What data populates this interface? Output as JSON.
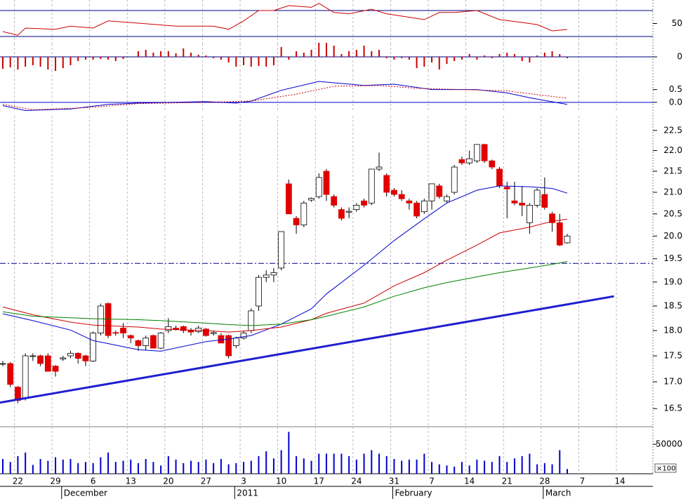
{
  "chart_data": [
    {
      "type": "line",
      "xlim": [
        -0.373,
        86.38
      ],
      "ylim": [
        19.2,
        86.2
      ],
      "yticks": [
        50
      ],
      "levels": [
        30,
        70
      ],
      "level_color": "#000080",
      "xgrid": true,
      "series": [
        {
          "color": "#cc0000",
          "x": [
            0,
            2,
            3,
            7,
            9,
            12,
            14,
            18,
            23,
            28,
            30,
            32,
            34,
            36,
            38,
            41,
            42,
            44,
            46,
            49,
            51,
            56,
            58,
            60,
            63,
            66,
            69,
            71,
            73,
            75
          ],
          "values": [
            37.6,
            32,
            43,
            41,
            46,
            43,
            54,
            50.5,
            46,
            46,
            41,
            54,
            70,
            70,
            77.6,
            75,
            81,
            67,
            65,
            72,
            65,
            56,
            67,
            67,
            70,
            56,
            51.6,
            48.4,
            38.6,
            40.8
          ]
        }
      ]
    },
    {
      "type": "bar",
      "xlim": [
        -0.373,
        86.38
      ],
      "ylim": [
        -19,
        19
      ],
      "yticks": [
        0
      ],
      "hline": {
        "value": 0,
        "color": "#000080"
      },
      "color": "#cc0000",
      "xgrid": true,
      "x": [
        0,
        1,
        2,
        3,
        4,
        5,
        6,
        7,
        8,
        9,
        10,
        11,
        12,
        13,
        14,
        15,
        16,
        17,
        18,
        19,
        20,
        21,
        22,
        23,
        24,
        25,
        26,
        27,
        28,
        29,
        30,
        31,
        32,
        33,
        34,
        35,
        36,
        37,
        38,
        39,
        40,
        41,
        42,
        43,
        44,
        45,
        46,
        47,
        48,
        49,
        50,
        51,
        52,
        53,
        54,
        55,
        56,
        57,
        58,
        59,
        60,
        61,
        62,
        63,
        64,
        65,
        66,
        67,
        68,
        69,
        70,
        71,
        72,
        73,
        74,
        75
      ],
      "values": [
        -17,
        -15,
        -18,
        -14,
        -12,
        -14,
        -18,
        -20,
        -16,
        -12,
        -6,
        -4,
        -4,
        -3,
        -4,
        -6,
        -3,
        0,
        8,
        10,
        6,
        8,
        8,
        5,
        12,
        6,
        3,
        2,
        -2,
        -4,
        -8,
        -14,
        -12,
        -14,
        -13,
        -14,
        -12,
        14,
        -4,
        8,
        6,
        10,
        20,
        20,
        16,
        4,
        8,
        10,
        16,
        8,
        10,
        -2,
        -4,
        -2,
        -4,
        -16,
        -14,
        -8,
        -18,
        -10,
        -6,
        -4,
        4,
        -4,
        2,
        -2,
        4,
        6,
        4,
        -6,
        -8,
        2,
        6,
        8,
        4,
        -2
      ]
    },
    {
      "type": "line",
      "xlim": [
        -0.373,
        86.38
      ],
      "ylim": [
        -0.39,
        1.26
      ],
      "yticks": [
        {
          "value": 0,
          "label": "0.0"
        },
        0.5
      ],
      "hline": {
        "value": 0,
        "color": "#0000cc"
      },
      "xgrid": true,
      "series": [
        {
          "color": "#0000cc",
          "style": "solid",
          "x": [
            0,
            3,
            9,
            14,
            18,
            27,
            31,
            33,
            37,
            42,
            48,
            52,
            57,
            63,
            67,
            70,
            75
          ],
          "values": [
            -0.13,
            -0.32,
            -0.26,
            -0.08,
            -0.03,
            0.03,
            -0.03,
            0.05,
            0.47,
            0.82,
            0.66,
            0.71,
            0.5,
            0.5,
            0.37,
            0.18,
            -0.08
          ]
        },
        {
          "color": "#cc0000",
          "style": "dotted",
          "x": [
            0,
            4,
            11,
            18,
            27,
            33,
            39,
            44,
            50,
            55,
            61,
            67,
            70,
            75
          ],
          "values": [
            -0.08,
            -0.29,
            -0.21,
            -0.05,
            0,
            0.05,
            0.32,
            0.63,
            0.66,
            0.55,
            0.5,
            0.45,
            0.34,
            0.16
          ]
        }
      ]
    },
    {
      "type": "candlestick",
      "xlim": [
        -0.373,
        86.38
      ],
      "ylim": [
        16.17,
        22.87
      ],
      "log": true,
      "xgrid": true,
      "yticks": [
        22.5,
        {
          "value": 22,
          "label": "22.0"
        },
        21.5,
        {
          "value": 21,
          "label": "21.0"
        },
        20.5,
        {
          "value": 20,
          "label": "20.0"
        },
        19.5,
        {
          "value": 19,
          "label": "19.0"
        },
        18.5,
        {
          "value": 18,
          "label": "18.0"
        },
        17.5,
        {
          "value": 17,
          "label": "17.0"
        },
        16.5
      ],
      "up_color": "#ffffff",
      "down_color": "#e00000",
      "wick_color": "#000000",
      "x": [
        0,
        1,
        2,
        3,
        4,
        5,
        6,
        7,
        8,
        9,
        10,
        11,
        12,
        13,
        14,
        15,
        16,
        17,
        18,
        19,
        20,
        21,
        22,
        23,
        24,
        25,
        26,
        27,
        28,
        29,
        30,
        31,
        32,
        33,
        34,
        35,
        36,
        37,
        38,
        39,
        40,
        41,
        42,
        43,
        44,
        45,
        46,
        47,
        48,
        49,
        50,
        51,
        52,
        53,
        54,
        55,
        56,
        57,
        58,
        59,
        60,
        61,
        62,
        63,
        64,
        65,
        66,
        67,
        68,
        69,
        70,
        71,
        72,
        73,
        74,
        75
      ],
      "open": [
        17.35,
        17.35,
        16.9,
        16.7,
        17.5,
        17.5,
        17.5,
        17.3,
        17.44,
        17.5,
        17.55,
        17.5,
        17.4,
        17.95,
        18.55,
        17.96,
        18.05,
        17.9,
        17.8,
        17.7,
        17.9,
        17.65,
        18.0,
        18.05,
        18.08,
        18.0,
        17.98,
        18.03,
        17.94,
        17.9,
        17.9,
        17.7,
        17.85,
        18.0,
        18.5,
        19.1,
        19.15,
        19.3,
        21.2,
        20.4,
        20.25,
        20.82,
        20.9,
        21.5,
        20.9,
        20.6,
        20.54,
        20.6,
        20.8,
        20.75,
        21.55,
        21.4,
        21.05,
        20.95,
        20.8,
        20.75,
        20.55,
        20.8,
        21.15,
        20.8,
        21.0,
        21.78,
        21.7,
        21.75,
        22.15,
        21.75,
        21.55,
        21.12,
        20.8,
        20.75,
        20.3,
        20.7,
        20.95,
        20.5,
        20.3,
        19.85
      ],
      "high": [
        17.4,
        17.38,
        16.92,
        17.55,
        17.55,
        17.52,
        17.55,
        17.32,
        17.5,
        17.6,
        17.57,
        17.52,
        17.98,
        18.55,
        18.57,
        18.0,
        18.15,
        17.92,
        17.82,
        17.9,
        17.92,
        17.97,
        18.25,
        18.1,
        18.1,
        18.05,
        18.1,
        18.05,
        18.0,
        17.95,
        17.92,
        17.88,
        18.0,
        18.45,
        19.15,
        19.25,
        19.3,
        20.1,
        21.3,
        20.45,
        20.8,
        20.88,
        21.45,
        21.55,
        20.95,
        20.65,
        20.65,
        20.75,
        20.85,
        21.55,
        21.95,
        21.45,
        21.1,
        21.05,
        20.85,
        20.8,
        20.85,
        21.2,
        21.2,
        20.95,
        21.65,
        21.85,
        22.0,
        22.15,
        22.17,
        21.78,
        21.6,
        21.25,
        21.25,
        21.15,
        20.75,
        21.1,
        21.35,
        20.55,
        20.5,
        20.05
      ],
      "low": [
        17.3,
        16.9,
        16.6,
        16.65,
        17.4,
        17.3,
        17.2,
        17.1,
        17.4,
        17.45,
        17.35,
        17.3,
        17.38,
        17.9,
        17.85,
        17.9,
        17.85,
        17.75,
        17.6,
        17.6,
        17.65,
        17.63,
        17.95,
        18.0,
        17.95,
        17.9,
        17.95,
        17.88,
        17.9,
        17.75,
        17.45,
        17.65,
        17.82,
        17.95,
        18.4,
        19.0,
        19.0,
        19.25,
        20.5,
        20.05,
        20.2,
        20.78,
        20.85,
        20.8,
        20.65,
        20.35,
        20.4,
        20.55,
        20.65,
        20.7,
        21.5,
        20.9,
        20.9,
        20.8,
        20.6,
        20.4,
        20.5,
        20.6,
        20.85,
        20.75,
        20.95,
        21.65,
        21.65,
        21.7,
        21.7,
        21.55,
        21.1,
        20.4,
        20.7,
        20.45,
        20.05,
        20.65,
        20.6,
        20.1,
        19.78,
        19.83
      ],
      "close": [
        17.35,
        16.95,
        16.65,
        17.5,
        17.5,
        17.35,
        17.2,
        17.2,
        17.46,
        17.55,
        17.45,
        17.4,
        17.95,
        18.5,
        17.9,
        17.95,
        17.95,
        17.85,
        17.7,
        17.85,
        17.65,
        17.95,
        18.08,
        18.02,
        18.0,
        17.97,
        18.05,
        17.9,
        17.96,
        17.75,
        17.5,
        17.85,
        17.95,
        18.4,
        19.1,
        19.15,
        19.2,
        20.1,
        20.5,
        20.25,
        20.75,
        20.86,
        21.35,
        20.95,
        20.7,
        20.4,
        20.56,
        20.7,
        20.7,
        21.55,
        21.6,
        21.0,
        20.95,
        20.85,
        20.75,
        20.45,
        20.8,
        21.2,
        20.9,
        20.9,
        21.6,
        21.7,
        21.8,
        22.15,
        21.75,
        21.6,
        21.15,
        21.08,
        20.75,
        20.7,
        20.7,
        21.05,
        20.65,
        20.3,
        19.8,
        20.0
      ],
      "series": [
        {
          "color": "#0000cc",
          "x": [
            0,
            4,
            9,
            12,
            18,
            21,
            27,
            30,
            33,
            37,
            41,
            43,
            48,
            52,
            56,
            59,
            63,
            66,
            70,
            73,
            75
          ],
          "values": [
            18.34,
            18.2,
            18.01,
            17.8,
            17.62,
            17.59,
            17.78,
            17.83,
            17.9,
            18.13,
            18.44,
            18.75,
            19.36,
            19.9,
            20.39,
            20.75,
            21.05,
            21.15,
            21.13,
            21.09,
            20.98
          ]
        },
        {
          "color": "#cc0000",
          "x": [
            0,
            4,
            9,
            12,
            18,
            21,
            27,
            30,
            33,
            37,
            41,
            43,
            48,
            52,
            56,
            59,
            63,
            66,
            70,
            73,
            75
          ],
          "values": [
            18.48,
            18.32,
            18.17,
            18.11,
            18.07,
            18.03,
            18.0,
            17.97,
            18.0,
            18.07,
            18.22,
            18.35,
            18.56,
            18.92,
            19.2,
            19.47,
            19.8,
            20.07,
            20.2,
            20.33,
            20.38
          ]
        },
        {
          "color": "#008000",
          "x": [
            0,
            4,
            9,
            12,
            18,
            21,
            27,
            30,
            33,
            37,
            41,
            43,
            48,
            52,
            56,
            59,
            63,
            66,
            70,
            73,
            75
          ],
          "values": [
            18.38,
            18.29,
            18.26,
            18.24,
            18.22,
            18.2,
            18.15,
            18.12,
            18.1,
            18.13,
            18.22,
            18.29,
            18.48,
            18.7,
            18.88,
            18.99,
            19.11,
            19.2,
            19.3,
            19.38,
            19.44
          ]
        }
      ],
      "trendline": {
        "x": [
          -0.37,
          81.2
        ],
        "values": [
          16.61,
          18.7
        ],
        "color": "#1f1fd0"
      },
      "hline": {
        "value": 19.4,
        "color": "#000080"
      }
    },
    {
      "type": "bar",
      "xlim": [
        -0.373,
        86.38
      ],
      "ylim": [
        0,
        79800
      ],
      "yticks": [
        50000
      ],
      "color": "#0000cc",
      "xgrid": true,
      "unit_label": "×100",
      "x": [
        0,
        1,
        2,
        3,
        4,
        5,
        6,
        7,
        8,
        9,
        10,
        11,
        12,
        13,
        14,
        15,
        16,
        17,
        18,
        19,
        20,
        21,
        22,
        23,
        24,
        25,
        26,
        27,
        28,
        29,
        30,
        31,
        32,
        33,
        34,
        35,
        36,
        37,
        38,
        39,
        40,
        41,
        42,
        43,
        44,
        45,
        46,
        47,
        48,
        49,
        50,
        51,
        52,
        53,
        54,
        55,
        56,
        57,
        58,
        59,
        60,
        61,
        62,
        63,
        64,
        65,
        66,
        67,
        68,
        69,
        70,
        71,
        72,
        73,
        74,
        75
      ],
      "values": [
        25000,
        20000,
        30000,
        36000,
        15000,
        25000,
        22000,
        28000,
        24000,
        25000,
        18000,
        20000,
        18000,
        28000,
        36000,
        20000,
        22000,
        24000,
        18000,
        25000,
        20000,
        14000,
        30000,
        24000,
        18000,
        22000,
        20000,
        24000,
        18000,
        25000,
        16000,
        18000,
        20000,
        22000,
        30000,
        38000,
        26000,
        40000,
        71000,
        30000,
        26000,
        22000,
        34000,
        34000,
        34000,
        34000,
        30000,
        24000,
        34000,
        40000,
        34000,
        30000,
        25000,
        22000,
        24000,
        24000,
        34000,
        20000,
        16000,
        14000,
        12000,
        20000,
        14000,
        24000,
        22000,
        20000,
        30000,
        20000,
        26000,
        30000,
        34000,
        16000,
        18000,
        16000,
        40000,
        8000
      ],
      "xticks": [
        {
          "value": 2,
          "label": "22"
        },
        {
          "value": 7,
          "label": "29"
        },
        {
          "value": 12,
          "label": "6"
        },
        {
          "value": 17,
          "label": "13"
        },
        {
          "value": 22,
          "label": "20"
        },
        {
          "value": 27,
          "label": "27"
        },
        {
          "value": 32,
          "label": "3"
        },
        {
          "value": 37,
          "label": "10"
        },
        {
          "value": 42,
          "label": "17"
        },
        {
          "value": 47,
          "label": "24"
        },
        {
          "value": 52,
          "label": "31"
        },
        {
          "value": 57,
          "label": "7"
        },
        {
          "value": 62,
          "label": "14"
        },
        {
          "value": 67,
          "label": "21"
        },
        {
          "value": 72,
          "label": "28"
        },
        {
          "value": 77,
          "label": "7"
        },
        {
          "value": 82,
          "label": "14"
        }
      ],
      "month_ticks": [
        {
          "value": 8,
          "label": "December"
        },
        {
          "value": 31,
          "label": "2011"
        },
        {
          "value": 52,
          "label": "February"
        },
        {
          "value": 72,
          "label": "March"
        }
      ]
    }
  ]
}
